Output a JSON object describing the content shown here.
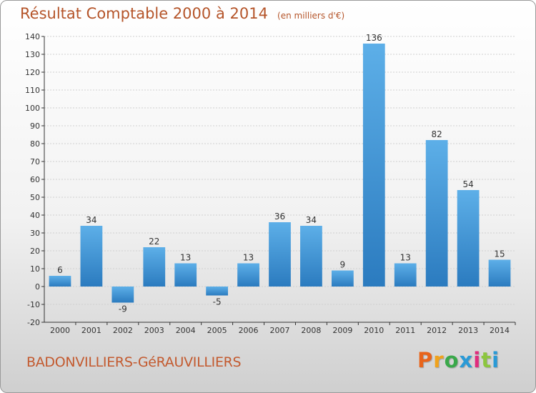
{
  "header": {
    "title": "Résultat Comptable 2000 à 2014",
    "unit": "(en milliers d'€)"
  },
  "footer": {
    "place": "BADONVILLIERS-GéRAUVILLIERS",
    "brand": "Proxiti",
    "brand_letter_colors": [
      "#e8641b",
      "#f0a21c",
      "#3aa84a",
      "#2a9ad6",
      "#e02c7d",
      "#8cc63f",
      "#2a9ad6"
    ]
  },
  "colors": {
    "bar_light": "#5dafe8",
    "bar_dark": "#2b7bbf",
    "grid": "#d0d0d0",
    "axis": "#333333",
    "title": "#b5552a"
  },
  "chart_data": {
    "type": "bar",
    "title": "Résultat Comptable 2000 à 2014",
    "xlabel": "",
    "ylabel": "",
    "categories": [
      "2000",
      "2001",
      "2002",
      "2003",
      "2004",
      "2005",
      "2006",
      "2007",
      "2008",
      "2009",
      "2010",
      "2011",
      "2012",
      "2013",
      "2014"
    ],
    "values": [
      6,
      34,
      -9,
      22,
      13,
      -5,
      13,
      36,
      34,
      9,
      136,
      13,
      82,
      54,
      15
    ],
    "ylim": [
      -20,
      140
    ],
    "yticks": [
      -20,
      -10,
      0,
      10,
      20,
      30,
      40,
      50,
      60,
      70,
      80,
      90,
      100,
      110,
      120,
      130,
      140
    ],
    "grid": "horizontal",
    "legend": "none"
  }
}
